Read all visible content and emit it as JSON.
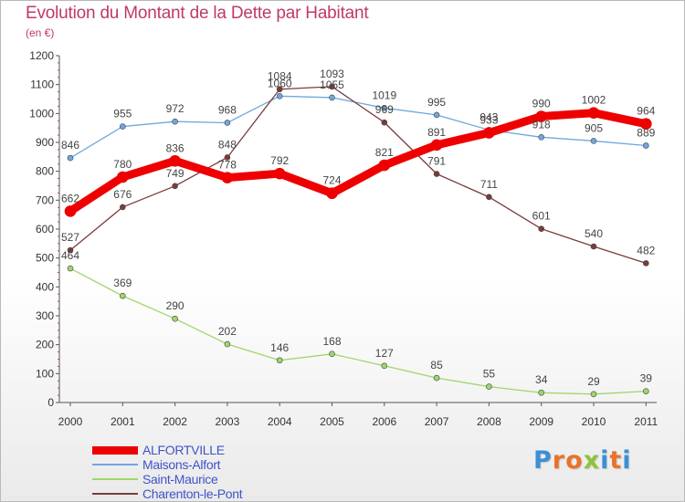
{
  "title": "Evolution du Montant de la Dette par Habitant",
  "unit_label": "(en €)",
  "logo": {
    "text": "Proxiti",
    "letters": [
      "P",
      "r",
      "o",
      "x",
      "i",
      "t",
      "i"
    ],
    "colors": [
      "#3a8fd6",
      "#e8732a",
      "#e8732a",
      "#8cc43c",
      "#3a8fd6",
      "#e8732a",
      "#3a8fd6"
    ]
  },
  "chart_data": {
    "type": "line",
    "title": "Evolution du Montant de la Dette par Habitant",
    "ylabel": "(en €)",
    "xlabel": "",
    "x": [
      "2000",
      "2001",
      "2002",
      "2003",
      "2004",
      "2005",
      "2006",
      "2007",
      "2008",
      "2009",
      "2010",
      "2011"
    ],
    "ylim": [
      0,
      1200
    ],
    "yticks": [
      0,
      100,
      200,
      300,
      400,
      500,
      600,
      700,
      800,
      900,
      1000,
      1100,
      1200
    ],
    "grid": false,
    "legend_position": "bottom-left",
    "series": [
      {
        "name": "ALFORTVILLE",
        "color": "#ee0000",
        "values": [
          662,
          780,
          836,
          778,
          792,
          724,
          821,
          891,
          933,
          990,
          1002,
          964
        ]
      },
      {
        "name": "Maisons-Alfort",
        "color": "#6fa8dc",
        "values": [
          846,
          955,
          972,
          968,
          1060,
          1055,
          1019,
          995,
          943,
          918,
          905,
          889
        ]
      },
      {
        "name": "Saint-Maurice",
        "color": "#9fd66b",
        "values": [
          464,
          369,
          290,
          202,
          146,
          168,
          127,
          85,
          55,
          34,
          29,
          39
        ]
      },
      {
        "name": "Charenton-le-Pont",
        "color": "#7a3b3b",
        "values": [
          527,
          676,
          749,
          848,
          1084,
          1093,
          969,
          791,
          711,
          601,
          540,
          482
        ]
      }
    ]
  }
}
